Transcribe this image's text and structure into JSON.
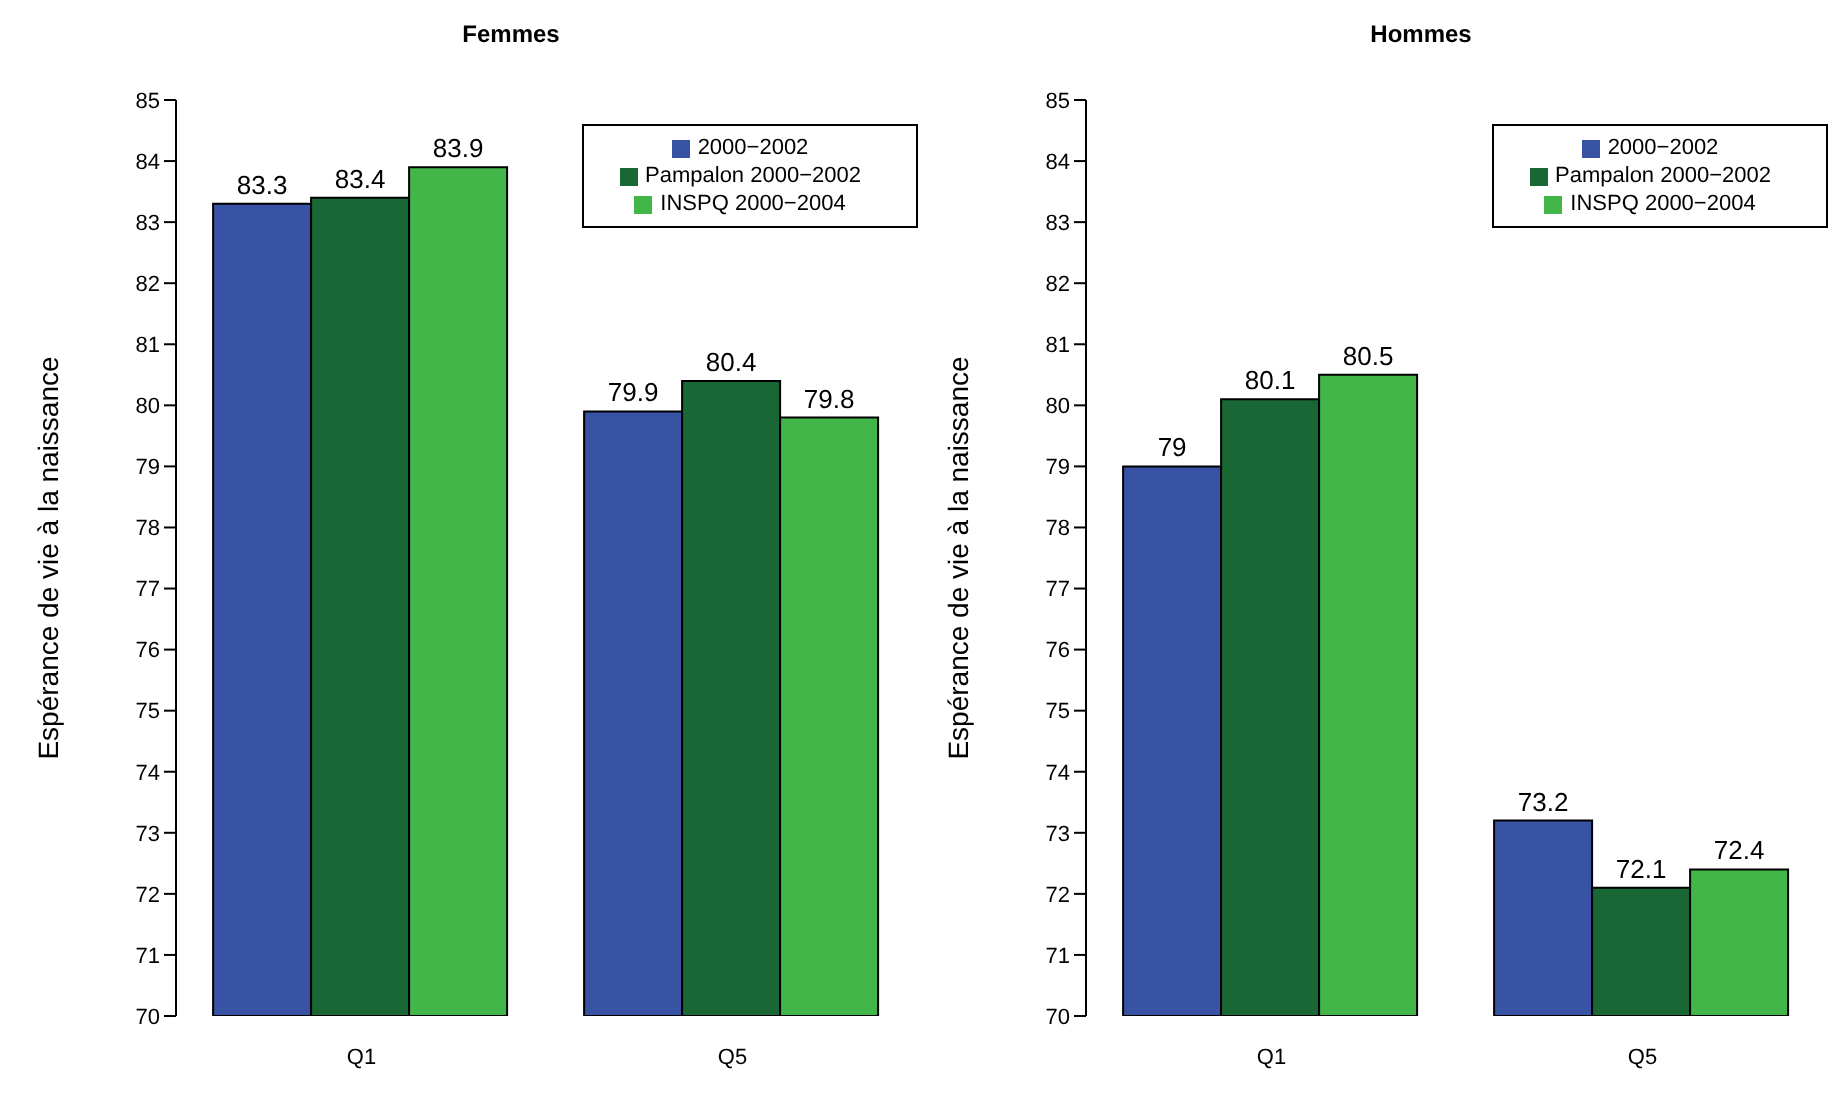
{
  "chart_data": [
    {
      "type": "bar",
      "title": "Femmes",
      "ylabel": "Espérance de vie à la naissance",
      "categories": [
        "Q1",
        "Q5"
      ],
      "series": [
        {
          "name": "2000−2002",
          "color": "#3953a4",
          "values": [
            83.3,
            79.9
          ]
        },
        {
          "name": "Pampalon 2000−2002",
          "color": "#186734",
          "values": [
            83.4,
            80.4
          ]
        },
        {
          "name": "INSPQ 2000−2004",
          "color": "#42b649",
          "values": [
            83.9,
            79.8
          ]
        }
      ],
      "ylim": [
        70,
        85
      ],
      "yticks": [
        70,
        71,
        72,
        73,
        74,
        75,
        76,
        77,
        78,
        79,
        80,
        81,
        82,
        83,
        84,
        85
      ],
      "data_labels": true,
      "legend": "top right",
      "grid": false
    },
    {
      "type": "bar",
      "title": "Hommes",
      "ylabel": "Espérance de vie à la naissance",
      "categories": [
        "Q1",
        "Q5"
      ],
      "series": [
        {
          "name": "2000−2002",
          "color": "#3953a4",
          "values": [
            79,
            73.2
          ]
        },
        {
          "name": "Pampalon 2000−2002",
          "color": "#186734",
          "values": [
            80.1,
            72.1
          ]
        },
        {
          "name": "INSPQ 2000−2004",
          "color": "#42b649",
          "values": [
            80.5,
            72.4
          ]
        }
      ],
      "ylim": [
        70,
        85
      ],
      "yticks": [
        70,
        71,
        72,
        73,
        74,
        75,
        76,
        77,
        78,
        79,
        80,
        81,
        82,
        83,
        84,
        85
      ],
      "data_labels": true,
      "legend": "top right",
      "grid": false
    }
  ]
}
